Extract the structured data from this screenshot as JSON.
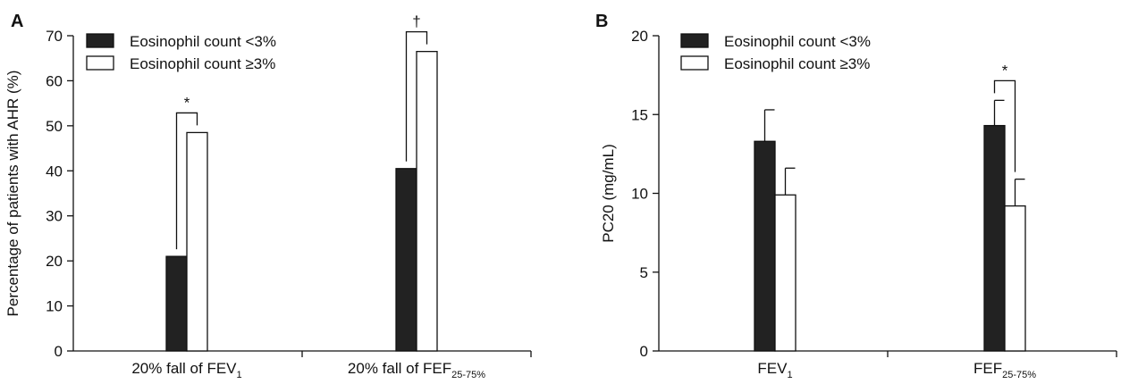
{
  "chart_data": [
    {
      "panel": "A",
      "type": "bar",
      "ylabel": "Percentage of patients with AHR (%)",
      "ylim": [
        0,
        70
      ],
      "yticks": [
        0,
        10,
        20,
        30,
        40,
        50,
        60,
        70
      ],
      "categories": [
        {
          "main": "20% fall of FEV",
          "sub": "1"
        },
        {
          "main": "20% fall of FEF",
          "sub": "25-75%"
        }
      ],
      "series": [
        {
          "name": "Eosinophil count <3%",
          "color": "#222222",
          "values": [
            21,
            40.5
          ]
        },
        {
          "name": "Eosinophil count ≥3%",
          "color": "#ffffff",
          "values": [
            48.5,
            66.5
          ]
        }
      ],
      "significance": [
        "*",
        "†"
      ],
      "legend": "top-left"
    },
    {
      "panel": "B",
      "type": "bar",
      "ylabel": "PC20 (mg/mL)",
      "ylim": [
        0,
        20
      ],
      "yticks": [
        0,
        5,
        10,
        15,
        20
      ],
      "categories": [
        {
          "main": "FEV",
          "sub": "1"
        },
        {
          "main": "FEF",
          "sub": "25-75%"
        }
      ],
      "series": [
        {
          "name": "Eosinophil count <3%",
          "color": "#222222",
          "values": [
            13.3,
            14.3
          ],
          "errors": [
            2.0,
            1.6
          ]
        },
        {
          "name": "Eosinophil count ≥3%",
          "color": "#ffffff",
          "values": [
            9.9,
            9.2
          ],
          "errors": [
            1.7,
            1.7
          ]
        }
      ],
      "significance": [
        null,
        "*"
      ],
      "legend": "top-left"
    }
  ]
}
